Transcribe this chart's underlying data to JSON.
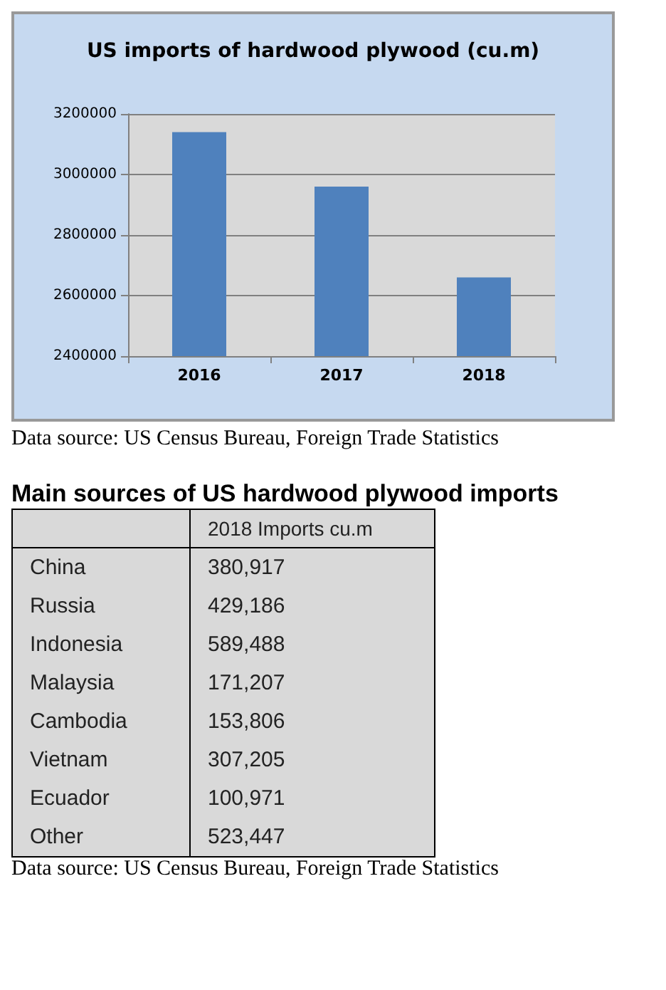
{
  "chart_data": [
    {
      "type": "bar",
      "title": "US imports of hardwood plywood (cu.m)",
      "categories": [
        "2016",
        "2017",
        "2018"
      ],
      "values": [
        3140000,
        2960000,
        2660000
      ],
      "color": "#4f81bd",
      "ylim": [
        2400000,
        3200000
      ],
      "yticks": [
        2400000,
        2600000,
        2800000,
        3000000,
        3200000
      ],
      "grid": "y",
      "annotations": [
        "Data source: US Census Bureau, Foreign Trade Statistics"
      ]
    },
    {
      "type": "other",
      "title": "Main sources of US hardwood plywood imports",
      "ylabel": "2018 Imports cu.m",
      "categories": [
        "China",
        "Russia",
        "Indonesia",
        "Malaysia",
        "Cambodia",
        "Vietnam",
        "Ecuador",
        "Other"
      ],
      "value_labels": [
        "380,917",
        "429,186",
        "589,488",
        "171,207",
        "153,806",
        "307,205",
        "100,971",
        "523,447"
      ],
      "annotations": [
        "Data source: US Census Bureau, Foreign Trade Statistics"
      ]
    }
  ]
}
